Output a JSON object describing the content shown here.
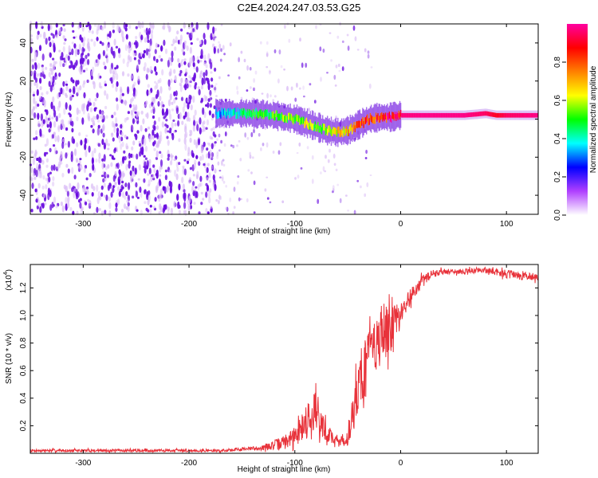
{
  "title": "C2E4.2024.247.03.53.G25",
  "colors": {
    "snr_line": "#e8323a",
    "low_density": "#d7b7f5",
    "mid_density": "#6a0ee0"
  },
  "chart_data": [
    {
      "type": "heatmap",
      "name": "spectrogram",
      "xlabel": "Height of straight line (km)",
      "ylabel": "Frequency (Hz)",
      "xlim": [
        -350,
        130
      ],
      "ylim": [
        -50,
        50
      ],
      "x_ticks": [
        -300,
        -200,
        -100,
        0,
        100
      ],
      "y_ticks": [
        -40,
        -20,
        0,
        20,
        40
      ],
      "colorbar": {
        "label": "Normalized spectral amplitude",
        "range": [
          0.0,
          1.0
        ],
        "ticks": [
          0.0,
          0.2,
          0.4,
          0.6,
          0.8
        ],
        "colormap": [
          "#ffffff",
          "#b040ff",
          "#0000ff",
          "#00ffff",
          "#00ff00",
          "#ffff00",
          "#ff8000",
          "#ff0000",
          "#ff00a0"
        ]
      },
      "noise_region_x": [
        -350,
        -175
      ],
      "signal_track": {
        "x": [
          -175,
          -160,
          -140,
          -120,
          -100,
          -90,
          -80,
          -70,
          -60,
          -50,
          -40,
          -30,
          -20,
          -10,
          0,
          20,
          60,
          80,
          90,
          100,
          130
        ],
        "freq": [
          3,
          3,
          3,
          2,
          0,
          -2,
          -4,
          -6,
          -7,
          -6,
          -3,
          0,
          1,
          1,
          2,
          2,
          2,
          3,
          2,
          2,
          2
        ],
        "amplitude": [
          0.35,
          0.4,
          0.5,
          0.55,
          0.6,
          0.65,
          0.55,
          0.6,
          0.7,
          0.75,
          0.85,
          0.9,
          0.92,
          0.95,
          0.97,
          0.98,
          0.98,
          0.95,
          0.9,
          0.95,
          0.98
        ]
      }
    },
    {
      "type": "line",
      "name": "snr",
      "xlabel": "Height of straight line (km)",
      "ylabel": "SNR (10 * v/v)",
      "y_scale_label": "(x10",
      "y_scale_exp": "4",
      "xlim": [
        -350,
        130
      ],
      "ylim": [
        0,
        1.37
      ],
      "x_ticks": [
        -300,
        -200,
        -100,
        0,
        100
      ],
      "y_ticks": [
        0.2,
        0.4,
        0.6,
        0.8,
        1.0,
        1.2
      ],
      "series": [
        {
          "name": "SNR",
          "x": [
            -350,
            -300,
            -250,
            -200,
            -170,
            -150,
            -130,
            -110,
            -100,
            -95,
            -90,
            -85,
            -80,
            -75,
            -70,
            -65,
            -60,
            -55,
            -50,
            -45,
            -40,
            -35,
            -30,
            -25,
            -20,
            -15,
            -10,
            -5,
            0,
            10,
            20,
            30,
            40,
            60,
            80,
            100,
            120,
            130
          ],
          "y": [
            0.02,
            0.02,
            0.02,
            0.02,
            0.02,
            0.03,
            0.04,
            0.08,
            0.12,
            0.18,
            0.22,
            0.28,
            0.35,
            0.2,
            0.15,
            0.12,
            0.08,
            0.1,
            0.1,
            0.3,
            0.5,
            0.6,
            0.7,
            0.8,
            0.82,
            0.86,
            0.9,
            0.95,
            1.0,
            1.15,
            1.25,
            1.3,
            1.32,
            1.32,
            1.33,
            1.3,
            1.29,
            1.28
          ],
          "noise_amplitude": [
            0.01,
            0.01,
            0.01,
            0.01,
            0.01,
            0.01,
            0.02,
            0.05,
            0.07,
            0.1,
            0.12,
            0.15,
            0.18,
            0.1,
            0.08,
            0.05,
            0.04,
            0.04,
            0.05,
            0.15,
            0.22,
            0.25,
            0.25,
            0.22,
            0.2,
            0.2,
            0.18,
            0.12,
            0.1,
            0.06,
            0.04,
            0.03,
            0.02,
            0.02,
            0.02,
            0.03,
            0.03,
            0.03
          ]
        }
      ]
    }
  ]
}
